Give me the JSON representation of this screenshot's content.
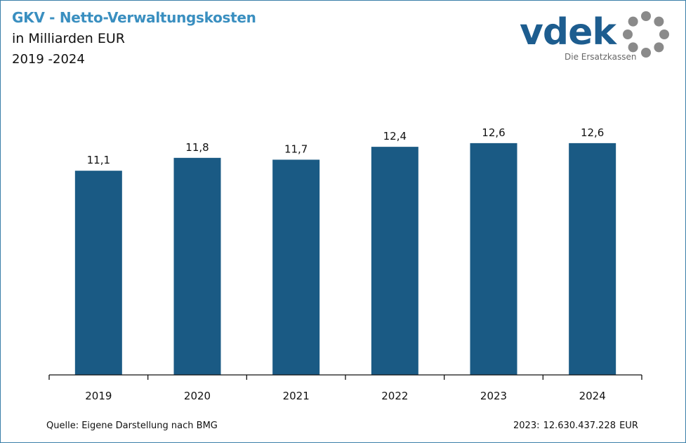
{
  "header": {
    "title": "GKV - Netto-Verwaltungskosten",
    "subtitle": "in Milliarden EUR",
    "years": "2019 -2024"
  },
  "logo": {
    "wordmark": "vdek",
    "tagline": "Die Ersatzkassen"
  },
  "footer": {
    "source": "Quelle: Eigene Darstellung nach BMG",
    "note": "2023: 12.630.437.228  EUR"
  },
  "colors": {
    "bar": "#1a5a84",
    "title": "#3a8fc0",
    "logo_blue": "#1d5d8f",
    "logo_gray": "#8a8a8a"
  },
  "chart_data": {
    "type": "bar",
    "title": "GKV - Netto-Verwaltungskosten",
    "subtitle": "in Milliarden EUR",
    "xlabel": "",
    "ylabel": "",
    "categories": [
      "2019",
      "2020",
      "2021",
      "2022",
      "2023",
      "2024"
    ],
    "values": [
      11.1,
      11.8,
      11.7,
      12.4,
      12.6,
      12.6
    ],
    "labels": [
      "11,1",
      "11,8",
      "11,7",
      "12,4",
      "12,6",
      "12,6"
    ],
    "ylim": [
      0,
      13.5
    ],
    "grid": false,
    "legend": "none"
  }
}
